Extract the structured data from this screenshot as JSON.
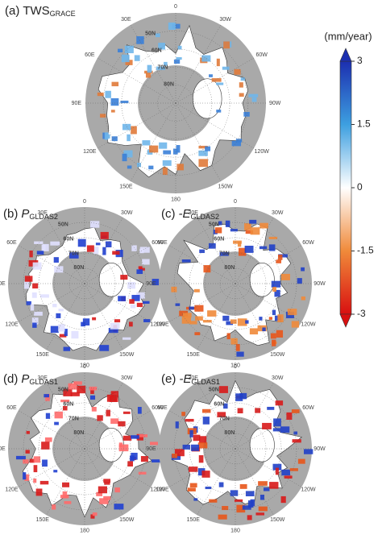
{
  "panels": [
    {
      "label": "(a)",
      "var": "TWS",
      "sub": "GRACE",
      "italic": false
    },
    {
      "label": "(b)",
      "var": "P",
      "sub": "GLDAS2",
      "italic": true
    },
    {
      "label": "(c)",
      "var": "-E",
      "sub": "GLDAS2",
      "italic": true
    },
    {
      "label": "(d)",
      "var": "P",
      "sub": "GLDAS1",
      "italic": true
    },
    {
      "label": "(e)",
      "var": "-E",
      "sub": "GLDAS1",
      "italic": true
    }
  ],
  "lon_labels": [
    "0",
    "30E",
    "60E",
    "90E",
    "120E",
    "150E",
    "180",
    "150W",
    "120W",
    "90W",
    "60W",
    "30W"
  ],
  "lat_labels": [
    "50N",
    "60N",
    "70N",
    "80N"
  ],
  "colorbar": {
    "title": "(mm/year)",
    "lim": [
      -3,
      3
    ],
    "ticks": [
      3,
      1.5,
      0,
      -1.5,
      -3
    ]
  }
}
